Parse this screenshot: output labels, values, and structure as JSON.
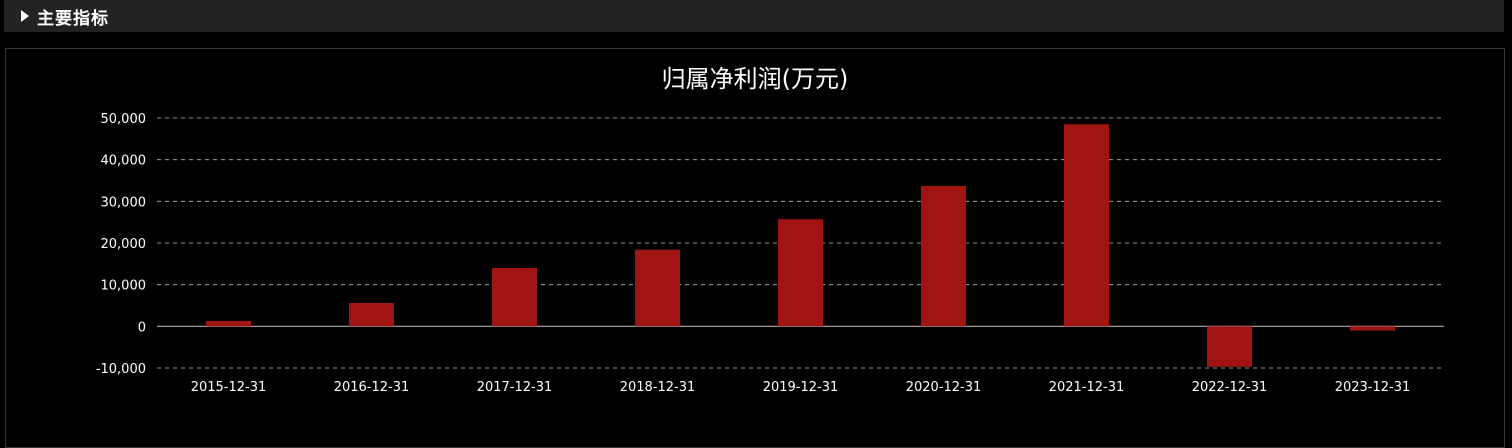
{
  "header": {
    "title": "主要指标",
    "icon": "triangle-right-icon"
  },
  "colors": {
    "bar": "#a01414",
    "grid": "#bbbbbb",
    "zero_line": "#aaaaaa",
    "text": "#ffffff",
    "background": "#000000",
    "header_background": "#222222"
  },
  "chart_data": {
    "type": "bar",
    "title": "归属净利润(万元)",
    "xlabel": "",
    "ylabel": "",
    "categories": [
      "2015-12-31",
      "2016-12-31",
      "2017-12-31",
      "2018-12-31",
      "2019-12-31",
      "2020-12-31",
      "2021-12-31",
      "2022-12-31",
      "2023-12-31"
    ],
    "values": [
      1300,
      5600,
      14000,
      18400,
      25700,
      33700,
      48500,
      -9700,
      -1000
    ],
    "ylim": [
      -10000,
      50000
    ],
    "yticks": [
      50000,
      40000,
      30000,
      20000,
      10000,
      0,
      -10000
    ],
    "ytick_labels": [
      "50,000",
      "40,000",
      "30,000",
      "20,000",
      "10,000",
      "0",
      "-10,000"
    ],
    "grid": true,
    "grid_style": "dashed",
    "legend": "none"
  }
}
